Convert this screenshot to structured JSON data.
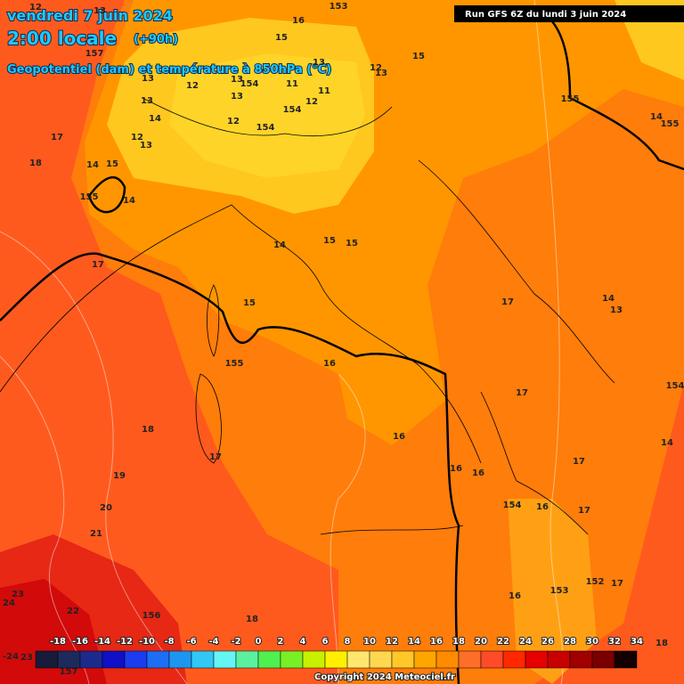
{
  "header": {
    "title": "vendredi 7 juin 2024",
    "time": "2:00 locale",
    "lead": "(+90h)",
    "subtitle": "Geopotentiel (dam) et température à 850hPa (°C)",
    "run": "Run GFS 6Z du lundi 3 juin 2024"
  },
  "contour_labels": [
    12,
    13,
    153,
    16,
    15,
    157,
    13,
    12,
    13,
    154,
    11,
    13,
    11,
    12,
    13,
    154,
    12,
    14,
    13,
    154,
    12,
    13,
    12,
    13,
    15,
    14,
    15,
    155,
    14,
    17,
    18,
    155,
    14,
    155,
    14,
    15,
    15,
    17,
    15,
    17,
    14,
    13,
    155,
    16,
    154,
    17,
    18,
    16,
    17,
    16,
    16,
    17,
    14,
    19,
    20,
    21,
    154,
    16,
    17,
    16,
    153,
    152,
    17,
    23,
    24,
    22,
    156,
    18,
    18,
    -24,
    23,
    157
  ],
  "colorbar": {
    "ticks": [
      -18,
      -16,
      -14,
      -12,
      -10,
      -8,
      -6,
      -4,
      -2,
      0,
      2,
      4,
      6,
      8,
      10,
      12,
      14,
      16,
      18,
      20,
      22,
      24,
      26,
      28,
      30,
      32,
      34
    ],
    "colors": [
      "#181c3a",
      "#1d2a5c",
      "#1c2a8c",
      "#1010c8",
      "#1c3cf0",
      "#1e6ef5",
      "#1e96f0",
      "#32c8f5",
      "#64f5f5",
      "#5af0a0",
      "#50f050",
      "#78f028",
      "#c8f000",
      "#fff000",
      "#ffe66e",
      "#ffd750",
      "#ffc828",
      "#ffa500",
      "#ff8c00",
      "#ff6e28",
      "#ff4b28",
      "#ff2800",
      "#e60000",
      "#c80000",
      "#a00000",
      "#780000",
      "#140000"
    ]
  },
  "footer": {
    "copyright": "Copyright 2024 Meteociel.fr"
  }
}
